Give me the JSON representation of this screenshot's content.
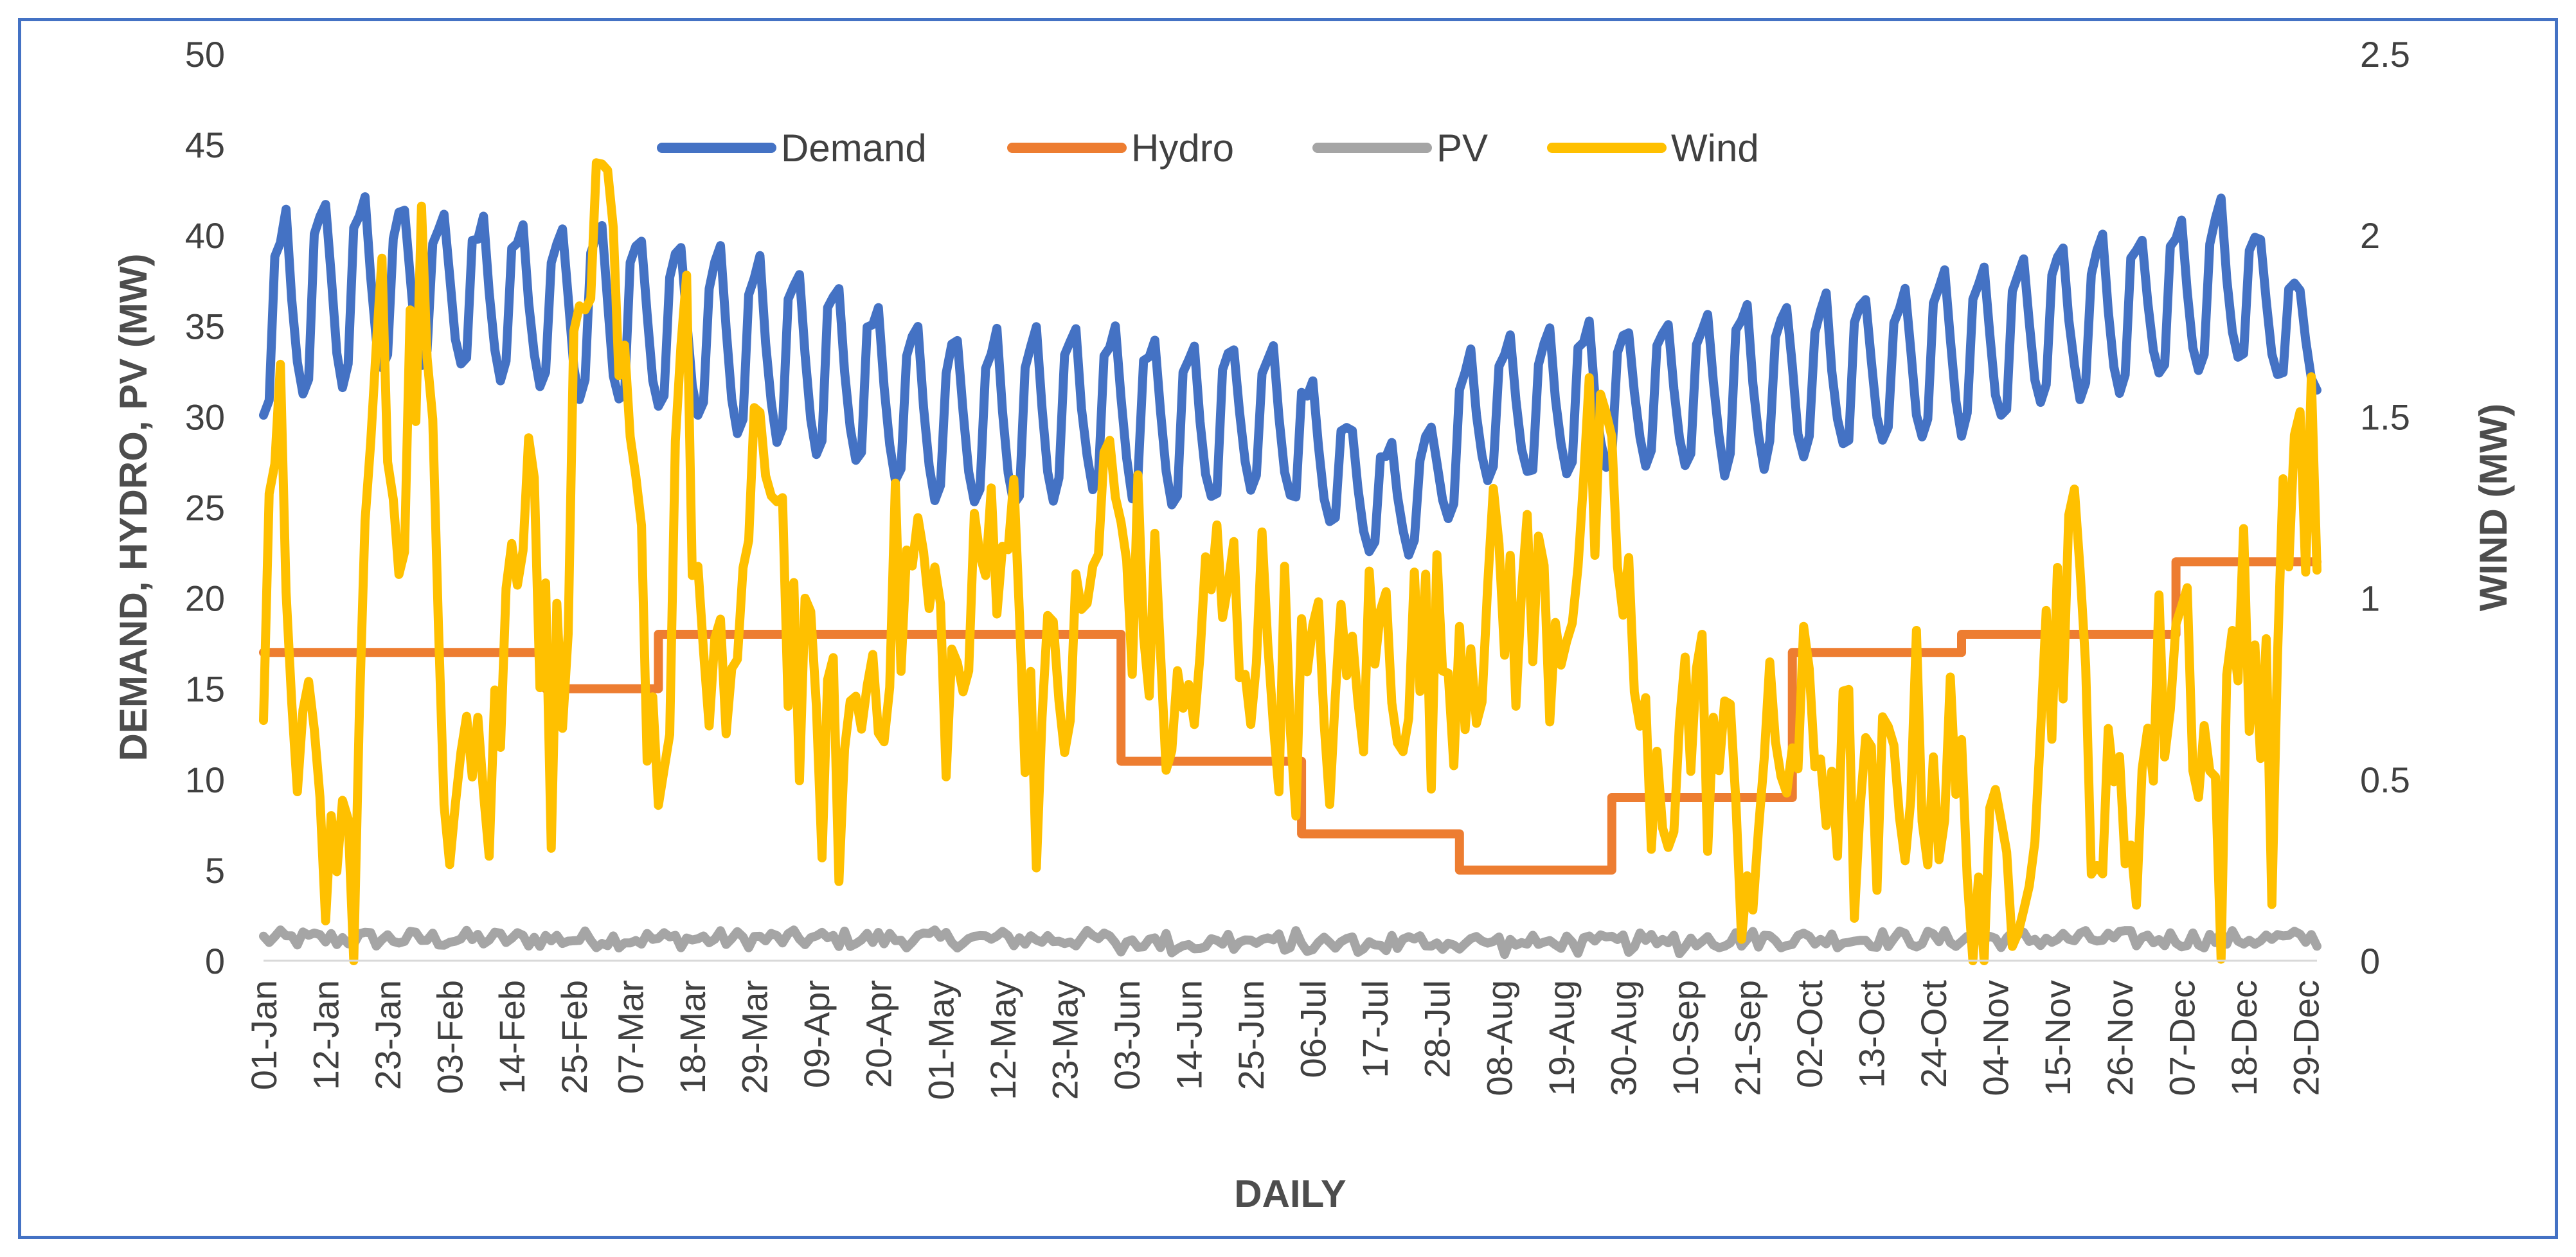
{
  "chart_data": {
    "type": "line",
    "xlabel": "DAILY",
    "ylabel": "DEMAND, HYDRO, PV (MW)",
    "y2label": "WIND (MW)",
    "ylim": [
      0,
      50
    ],
    "y2lim": [
      0,
      2.5
    ],
    "y_ticks": [
      "0",
      "5",
      "10",
      "15",
      "20",
      "25",
      "30",
      "35",
      "40",
      "45",
      "50"
    ],
    "y2_ticks": [
      "0",
      "0.5",
      "1",
      "1.5",
      "2",
      "2.5"
    ],
    "x_tick_labels": [
      "01-Jan",
      "12-Jan",
      "23-Jan",
      "03-Feb",
      "14-Feb",
      "25-Feb",
      "07-Mar",
      "18-Mar",
      "29-Mar",
      "09-Apr",
      "20-Apr",
      "01-May",
      "12-May",
      "23-May",
      "03-Jun",
      "14-Jun",
      "25-Jun",
      "06-Jul",
      "17-Jul",
      "28-Jul",
      "08-Aug",
      "19-Aug",
      "30-Aug",
      "10-Sep",
      "21-Sep",
      "02-Oct",
      "13-Oct",
      "24-Oct",
      "04-Nov",
      "15-Nov",
      "26-Nov",
      "07-Dec",
      "18-Dec",
      "29-Dec"
    ],
    "x_tick_days": [
      1,
      12,
      23,
      34,
      45,
      56,
      66,
      77,
      88,
      99,
      110,
      121,
      132,
      143,
      154,
      165,
      176,
      187,
      198,
      209,
      220,
      231,
      242,
      253,
      264,
      275,
      286,
      297,
      308,
      319,
      330,
      341,
      352,
      363
    ],
    "legend_position": "top",
    "series": [
      {
        "name": "Demand",
        "axis": "left",
        "color": "#4472C4",
        "kind": "weekly",
        "weekly_pattern": [
          30,
          31,
          39,
          40,
          41,
          36,
          32
        ],
        "weekly_points": [
          {
            "day": 1,
            "high": 40.5,
            "low": 30
          },
          {
            "day": 15,
            "high": 42.5,
            "low": 32
          },
          {
            "day": 30,
            "high": 41.5,
            "low": 33
          },
          {
            "day": 45,
            "high": 40.5,
            "low": 32
          },
          {
            "day": 60,
            "high": 40.5,
            "low": 31
          },
          {
            "day": 75,
            "high": 39.5,
            "low": 30
          },
          {
            "day": 90,
            "high": 38.5,
            "low": 29
          },
          {
            "day": 105,
            "high": 37,
            "low": 27.5
          },
          {
            "day": 120,
            "high": 34.5,
            "low": 25
          },
          {
            "day": 135,
            "high": 34.5,
            "low": 25
          },
          {
            "day": 150,
            "high": 35,
            "low": 26
          },
          {
            "day": 165,
            "high": 34,
            "low": 25
          },
          {
            "day": 180,
            "high": 34,
            "low": 26
          },
          {
            "day": 195,
            "high": 29,
            "low": 23
          },
          {
            "day": 205,
            "high": 28,
            "low": 22.5
          },
          {
            "day": 215,
            "high": 33.5,
            "low": 26
          },
          {
            "day": 230,
            "high": 35,
            "low": 27
          },
          {
            "day": 245,
            "high": 35,
            "low": 27.5
          },
          {
            "day": 260,
            "high": 36,
            "low": 27
          },
          {
            "day": 275,
            "high": 36.5,
            "low": 28
          },
          {
            "day": 290,
            "high": 37,
            "low": 28.5
          },
          {
            "day": 305,
            "high": 38.5,
            "low": 29.5
          },
          {
            "day": 320,
            "high": 39.5,
            "low": 31
          },
          {
            "day": 335,
            "high": 40,
            "low": 32
          },
          {
            "day": 350,
            "high": 42,
            "low": 33
          },
          {
            "day": 365,
            "high": 36,
            "low": 31.5
          }
        ]
      },
      {
        "name": "Hydro",
        "axis": "left",
        "color": "#ED7D31",
        "kind": "step",
        "steps": [
          {
            "from": 1,
            "to": 51,
            "value": 17
          },
          {
            "from": 51,
            "to": 71,
            "value": 15
          },
          {
            "from": 71,
            "to": 153,
            "value": 18
          },
          {
            "from": 153,
            "to": 185,
            "value": 11
          },
          {
            "from": 185,
            "to": 213,
            "value": 7
          },
          {
            "from": 213,
            "to": 240,
            "value": 5
          },
          {
            "from": 240,
            "to": 272,
            "value": 9
          },
          {
            "from": 272,
            "to": 302,
            "value": 17
          },
          {
            "from": 302,
            "to": 340,
            "value": 18
          },
          {
            "from": 340,
            "to": 366,
            "value": 22
          }
        ]
      },
      {
        "name": "PV",
        "axis": "left",
        "color": "#A5A5A5",
        "kind": "noisy",
        "base": 1.2,
        "amplitude": 0.5
      },
      {
        "name": "Wind",
        "axis": "right",
        "color": "#FFC000",
        "kind": "noisy",
        "anchor_points": [
          {
            "day": 1,
            "value": 0.8
          },
          {
            "day": 4,
            "value": 1.35
          },
          {
            "day": 8,
            "value": 0.5
          },
          {
            "day": 12,
            "value": 0.3
          },
          {
            "day": 17,
            "value": 0.25
          },
          {
            "day": 21,
            "value": 1.75
          },
          {
            "day": 25,
            "value": 1.3
          },
          {
            "day": 29,
            "value": 1.9
          },
          {
            "day": 33,
            "value": 0.5
          },
          {
            "day": 37,
            "value": 0.9
          },
          {
            "day": 41,
            "value": 0.4
          },
          {
            "day": 48,
            "value": 1.6
          },
          {
            "day": 52,
            "value": 0.5
          },
          {
            "day": 57,
            "value": 1.7
          },
          {
            "day": 60,
            "value": 2.15
          },
          {
            "day": 64,
            "value": 1.55
          },
          {
            "day": 68,
            "value": 1.0
          },
          {
            "day": 72,
            "value": 0.45
          },
          {
            "day": 75,
            "value": 1.85
          },
          {
            "day": 80,
            "value": 0.5
          },
          {
            "day": 86,
            "value": 1.0
          },
          {
            "day": 91,
            "value": 1.5
          },
          {
            "day": 96,
            "value": 0.7
          },
          {
            "day": 103,
            "value": 0.5
          },
          {
            "day": 110,
            "value": 0.9
          },
          {
            "day": 117,
            "value": 1.1
          },
          {
            "day": 124,
            "value": 0.7
          },
          {
            "day": 132,
            "value": 1.35
          },
          {
            "day": 138,
            "value": 0.6
          },
          {
            "day": 146,
            "value": 0.85
          },
          {
            "day": 150,
            "value": 1.3
          },
          {
            "day": 157,
            "value": 1.0
          },
          {
            "day": 163,
            "value": 0.6
          },
          {
            "day": 170,
            "value": 1.0
          },
          {
            "day": 178,
            "value": 0.9
          },
          {
            "day": 185,
            "value": 0.7
          },
          {
            "day": 192,
            "value": 0.7
          },
          {
            "day": 200,
            "value": 0.9
          },
          {
            "day": 208,
            "value": 0.8
          },
          {
            "day": 215,
            "value": 0.95
          },
          {
            "day": 222,
            "value": 1.0
          },
          {
            "day": 230,
            "value": 0.95
          },
          {
            "day": 236,
            "value": 1.3
          },
          {
            "day": 242,
            "value": 1.1
          },
          {
            "day": 247,
            "value": 0.3
          },
          {
            "day": 252,
            "value": 0.7
          },
          {
            "day": 258,
            "value": 0.6
          },
          {
            "day": 264,
            "value": 0.3
          },
          {
            "day": 270,
            "value": 0.6
          },
          {
            "day": 278,
            "value": 0.6
          },
          {
            "day": 286,
            "value": 0.3
          },
          {
            "day": 293,
            "value": 0.6
          },
          {
            "day": 300,
            "value": 0.5
          },
          {
            "day": 307,
            "value": 0.1
          },
          {
            "day": 314,
            "value": 0.5
          },
          {
            "day": 321,
            "value": 1.15
          },
          {
            "day": 327,
            "value": 0.3
          },
          {
            "day": 334,
            "value": 0.5
          },
          {
            "day": 341,
            "value": 1.0
          },
          {
            "day": 348,
            "value": 0.3
          },
          {
            "day": 352,
            "value": 1.1
          },
          {
            "day": 357,
            "value": 0.5
          },
          {
            "day": 361,
            "value": 1.5
          },
          {
            "day": 365,
            "value": 1.25
          }
        ],
        "amplitude": 0.35
      }
    ]
  }
}
